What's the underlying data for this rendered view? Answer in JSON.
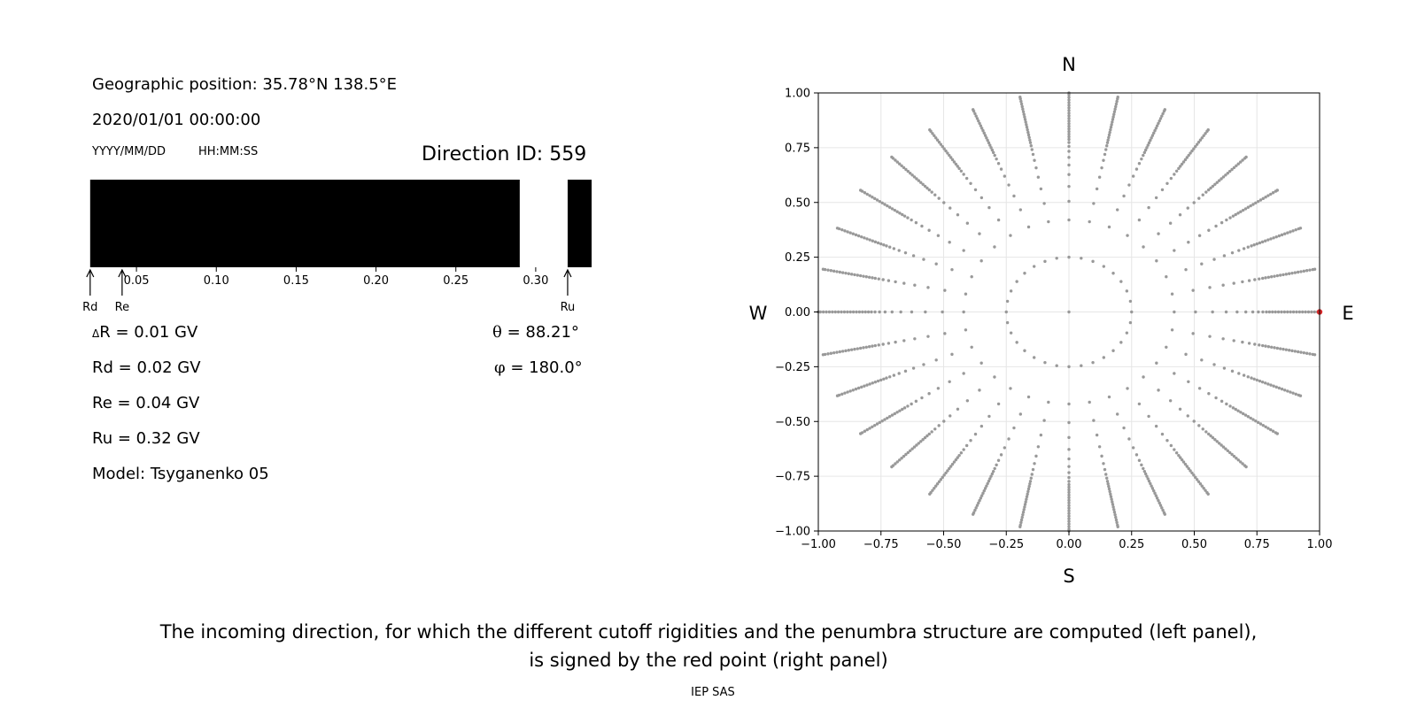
{
  "header": {
    "position": "Geographic position: 35.78°N 138.5°E",
    "datetime": "2020/01/01 00:00:00",
    "date_format": "YYYY/MM/DD",
    "time_format": "HH:MM:SS",
    "direction_id": "Direction ID: 559"
  },
  "stats": {
    "delta_r_symbol": "Δ",
    "delta_r": "R = 0.01 GV",
    "rd": "Rd = 0.02 GV",
    "re": "Re = 0.04 GV",
    "ru": "Ru = 0.32 GV",
    "model": "Model: Tsyganenko 05",
    "theta_symbol": "θ",
    "theta": " = 88.21°",
    "phi_symbol": "φ",
    "phi": " = 180.0°"
  },
  "caption": {
    "line1": "The incoming direction, for which the different cutoff rigidities and the penumbra structure are computed (left panel),",
    "line2": "is signed by the red point (right panel)",
    "credit": "IEP SAS"
  },
  "colors": {
    "grid_point": "#999999",
    "highlight_point": "#d62728",
    "allowed": "#ffffff",
    "forbidden": "#000000"
  },
  "chart_data": [
    {
      "type": "bar",
      "xlim": [
        0.02,
        0.335
      ],
      "tick_labels": [
        "0.05",
        "0.10",
        "0.15",
        "0.20",
        "0.25",
        "0.30"
      ],
      "tick_values": [
        0.05,
        0.1,
        0.15,
        0.2,
        0.25,
        0.3
      ],
      "allowed_bands": [
        [
          0.02,
          0.021
        ],
        [
          0.29,
          0.32
        ]
      ],
      "markers": [
        {
          "label": "Rd",
          "value": 0.021
        },
        {
          "label": "Re",
          "value": 0.041
        },
        {
          "label": "Ru",
          "value": 0.32
        }
      ]
    },
    {
      "type": "scatter",
      "xlim": [
        -1.0,
        1.0
      ],
      "ylim": [
        -1.0,
        1.0
      ],
      "grid": true,
      "tick_labels": [
        "−1.00",
        "−0.75",
        "−0.50",
        "−0.25",
        "0.00",
        "0.25",
        "0.50",
        "0.75",
        "1.00"
      ],
      "tick_values": [
        -1.0,
        -0.75,
        -0.5,
        -0.25,
        0.0,
        0.25,
        0.5,
        0.75,
        1.0
      ],
      "compass": {
        "north": "N",
        "south": "S",
        "west": "W",
        "east": "E"
      },
      "azimuth_count": 32,
      "inner_ring_radius": 0.25,
      "inner_ring_points": 32,
      "outer_radius": 1.0,
      "highlight": {
        "x": 1.0,
        "y": 0.0
      }
    }
  ]
}
